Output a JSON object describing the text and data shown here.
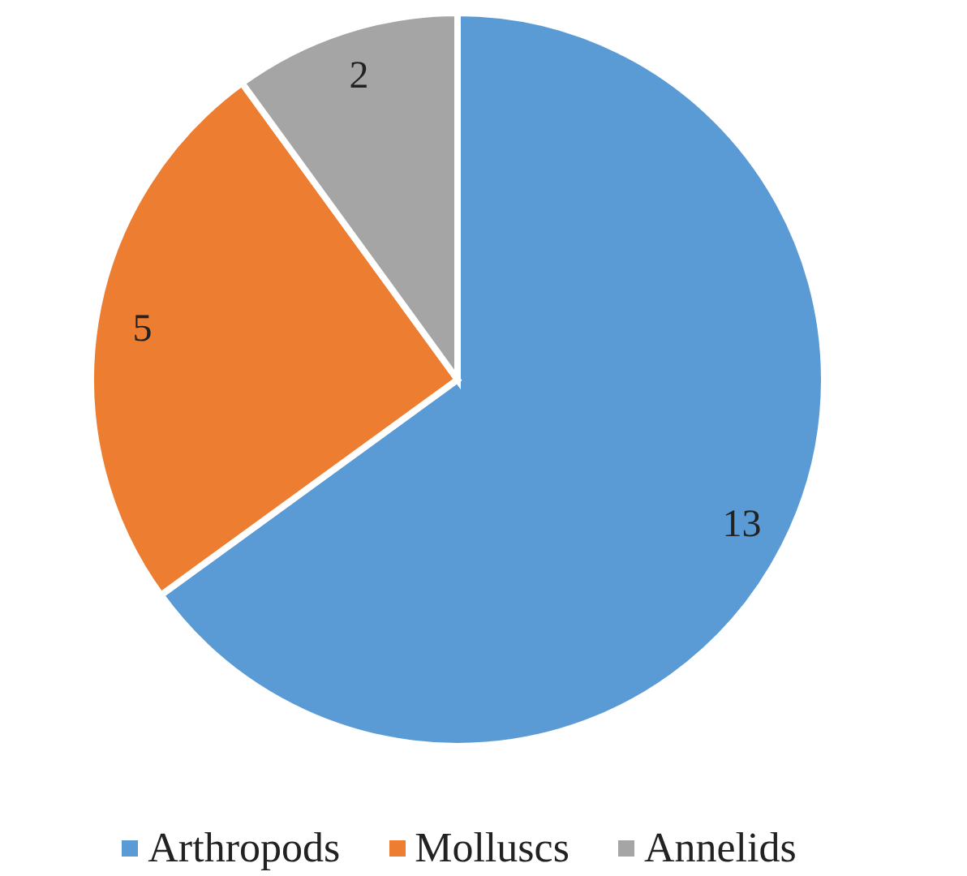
{
  "chart_data": {
    "type": "pie",
    "categories": [
      "Arthropods",
      "Molluscs",
      "Annelids"
    ],
    "values": [
      13,
      5,
      2
    ],
    "colors": [
      "#5b9bd5",
      "#ed7d31",
      "#a5a5a5"
    ],
    "data_labels": true,
    "legend": "bottom"
  }
}
